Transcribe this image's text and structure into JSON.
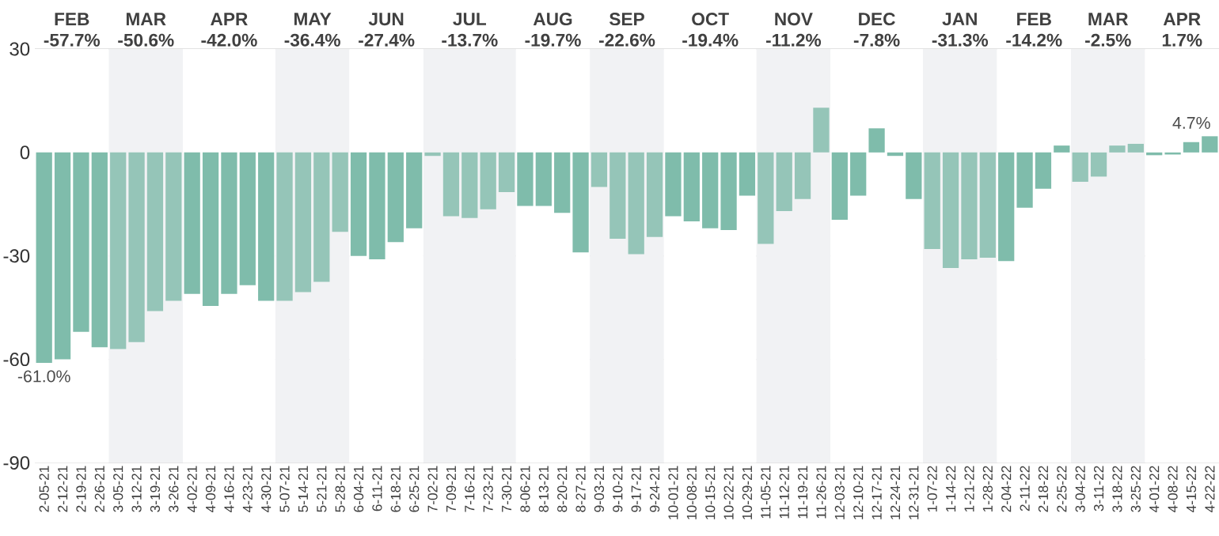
{
  "chart_data": {
    "type": "bar",
    "categories": [
      "2-05-21",
      "2-12-21",
      "2-19-21",
      "2-26-21",
      "3-05-21",
      "3-12-21",
      "3-19-21",
      "3-26-21",
      "4-02-21",
      "4-09-21",
      "4-16-21",
      "4-23-21",
      "4-30-21",
      "5-07-21",
      "5-14-21",
      "5-21-21",
      "5-28-21",
      "6-04-21",
      "6-11-21",
      "6-18-21",
      "6-25-21",
      "7-02-21",
      "7-09-21",
      "7-16-21",
      "7-23-21",
      "7-30-21",
      "8-06-21",
      "8-13-21",
      "8-20-21",
      "8-27-21",
      "9-03-21",
      "9-10-21",
      "9-17-21",
      "9-24-21",
      "10-01-21",
      "10-08-21",
      "10-15-21",
      "10-22-21",
      "10-29-21",
      "11-05-21",
      "11-12-21",
      "11-19-21",
      "11-26-21",
      "12-03-21",
      "12-10-21",
      "12-17-21",
      "12-24-21",
      "12-31-21",
      "1-07-22",
      "1-14-22",
      "1-21-22",
      "1-28-22",
      "2-04-22",
      "2-11-22",
      "2-18-22",
      "2-25-22",
      "3-04-22",
      "3-11-22",
      "3-18-22",
      "3-25-22",
      "4-01-22",
      "4-08-22",
      "4-15-22",
      "4-22-22"
    ],
    "values": [
      -61.0,
      -60,
      -52,
      -56.5,
      -57,
      -55,
      -46,
      -43,
      -41,
      -44.5,
      -41,
      -38.5,
      -43,
      -43,
      -40.5,
      -37.5,
      -23,
      -30,
      -31,
      -26,
      -22,
      -1,
      -18.5,
      -19,
      -16.5,
      -11.5,
      -15.5,
      -15.5,
      -17.5,
      -29,
      -10,
      -25,
      -29.5,
      -24.5,
      -18.5,
      -20,
      -22,
      -22.5,
      -12.5,
      -26.5,
      -17,
      -13.5,
      13,
      -19.5,
      -12.5,
      7,
      -1,
      -13.5,
      -28,
      -33.5,
      -31,
      -30.5,
      -31.5,
      -16,
      -10.5,
      2,
      -8.5,
      -7,
      2,
      2.5,
      -0.8,
      -0.6,
      3,
      4.7
    ],
    "colors": [
      "#7fbcab",
      "#7fbcab",
      "#7fbcab",
      "#7fbcab",
      "#95c5b8",
      "#95c5b8",
      "#95c5b8",
      "#95c5b8",
      "#7fbcab",
      "#7fbcab",
      "#7fbcab",
      "#7fbcab",
      "#7fbcab",
      "#95c5b8",
      "#95c5b8",
      "#95c5b8",
      "#95c5b8",
      "#7fbcab",
      "#7fbcab",
      "#7fbcab",
      "#7fbcab",
      "#95c5b8",
      "#95c5b8",
      "#95c5b8",
      "#95c5b8",
      "#95c5b8",
      "#7fbcab",
      "#7fbcab",
      "#7fbcab",
      "#7fbcab",
      "#95c5b8",
      "#95c5b8",
      "#95c5b8",
      "#95c5b8",
      "#7fbcab",
      "#7fbcab",
      "#7fbcab",
      "#7fbcab",
      "#7fbcab",
      "#95c5b8",
      "#95c5b8",
      "#95c5b8",
      "#95c5b8",
      "#7fbcab",
      "#7fbcab",
      "#7fbcab",
      "#7fbcab",
      "#7fbcab",
      "#95c5b8",
      "#95c5b8",
      "#95c5b8",
      "#95c5b8",
      "#7fbcab",
      "#7fbcab",
      "#7fbcab",
      "#7fbcab",
      "#95c5b8",
      "#95c5b8",
      "#95c5b8",
      "#95c5b8",
      "#7fbcab",
      "#7fbcab",
      "#7fbcab",
      "#7fbcab"
    ],
    "value_labels": [
      "-61.0%",
      null,
      null,
      null,
      null,
      null,
      null,
      null,
      null,
      null,
      null,
      null,
      null,
      null,
      null,
      null,
      null,
      null,
      null,
      null,
      null,
      null,
      null,
      null,
      null,
      null,
      null,
      null,
      null,
      null,
      null,
      null,
      null,
      null,
      null,
      null,
      null,
      null,
      null,
      null,
      null,
      null,
      null,
      null,
      null,
      null,
      null,
      null,
      null,
      null,
      null,
      null,
      null,
      null,
      null,
      null,
      null,
      null,
      null,
      null,
      null,
      null,
      null,
      "4.7%"
    ],
    "ylim": [
      -90,
      30
    ],
    "yticks": [
      -90,
      -60,
      -30,
      0,
      30
    ],
    "grid": "y",
    "bands": [
      {
        "axis": "x",
        "from": "2-05-21",
        "to": "2-26-21",
        "label": "FEB -57.7%",
        "color": "#ffffff"
      },
      {
        "axis": "x",
        "from": "3-05-21",
        "to": "3-26-21",
        "label": "MAR -50.6%",
        "color": "#f1f2f4"
      },
      {
        "axis": "x",
        "from": "4-02-21",
        "to": "4-30-21",
        "label": "APR -42.0%",
        "color": "#ffffff"
      },
      {
        "axis": "x",
        "from": "5-07-21",
        "to": "5-28-21",
        "label": "MAY -36.4%",
        "color": "#f1f2f4"
      },
      {
        "axis": "x",
        "from": "6-04-21",
        "to": "6-25-21",
        "label": "JUN -27.4%",
        "color": "#ffffff"
      },
      {
        "axis": "x",
        "from": "7-02-21",
        "to": "7-30-21",
        "label": "JUL -13.7%",
        "color": "#f1f2f4"
      },
      {
        "axis": "x",
        "from": "8-06-21",
        "to": "8-27-21",
        "label": "AUG -19.7%",
        "color": "#ffffff"
      },
      {
        "axis": "x",
        "from": "9-03-21",
        "to": "9-24-21",
        "label": "SEP -22.6%",
        "color": "#f1f2f4"
      },
      {
        "axis": "x",
        "from": "10-01-21",
        "to": "10-29-21",
        "label": "OCT -19.4%",
        "color": "#ffffff"
      },
      {
        "axis": "x",
        "from": "11-05-21",
        "to": "11-26-21",
        "label": "NOV -11.2%",
        "color": "#f1f2f4"
      },
      {
        "axis": "x",
        "from": "12-03-21",
        "to": "12-31-21",
        "label": "DEC -7.8%",
        "color": "#ffffff"
      },
      {
        "axis": "x",
        "from": "1-07-22",
        "to": "1-28-22",
        "label": "JAN -31.3%",
        "color": "#f1f2f4"
      },
      {
        "axis": "x",
        "from": "2-04-22",
        "to": "2-25-22",
        "label": "FEB -14.2%",
        "color": "#ffffff"
      },
      {
        "axis": "x",
        "from": "3-04-22",
        "to": "3-25-22",
        "label": "MAR -2.5%",
        "color": "#f1f2f4"
      },
      {
        "axis": "x",
        "from": "4-01-22",
        "to": "4-22-22",
        "label": "APR 1.7%",
        "color": "#ffffff"
      }
    ]
  }
}
